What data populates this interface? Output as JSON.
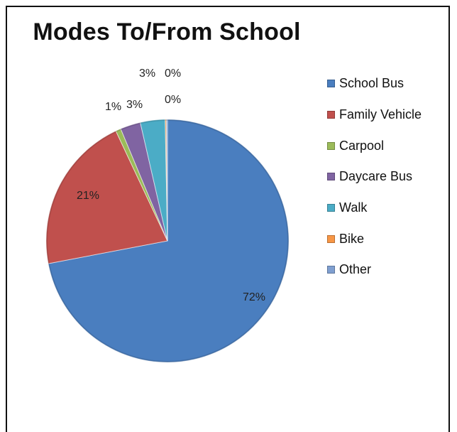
{
  "chart_data": {
    "type": "pie",
    "title": "Modes To/From School",
    "legend_position": "right",
    "series": [
      {
        "name": "School Bus",
        "label": "72%",
        "value": 72,
        "color": "#4a7ebf"
      },
      {
        "name": "Family Vehicle",
        "label": "21%",
        "value": 21,
        "color": "#c0504d"
      },
      {
        "name": "Carpool",
        "label": "1%",
        "value": 0.7,
        "color": "#9bbb59"
      },
      {
        "name": "Daycare Bus",
        "label": "3%",
        "value": 2.7,
        "color": "#8064a2"
      },
      {
        "name": "Walk",
        "label": "3%",
        "value": 3.3,
        "color": "#4bacc6"
      },
      {
        "name": "Bike",
        "label": "0%",
        "value": 0.15,
        "color": "#f79646"
      },
      {
        "name": "Other",
        "label": "0%",
        "value": 0.15,
        "color": "#7f9fd0"
      }
    ]
  }
}
